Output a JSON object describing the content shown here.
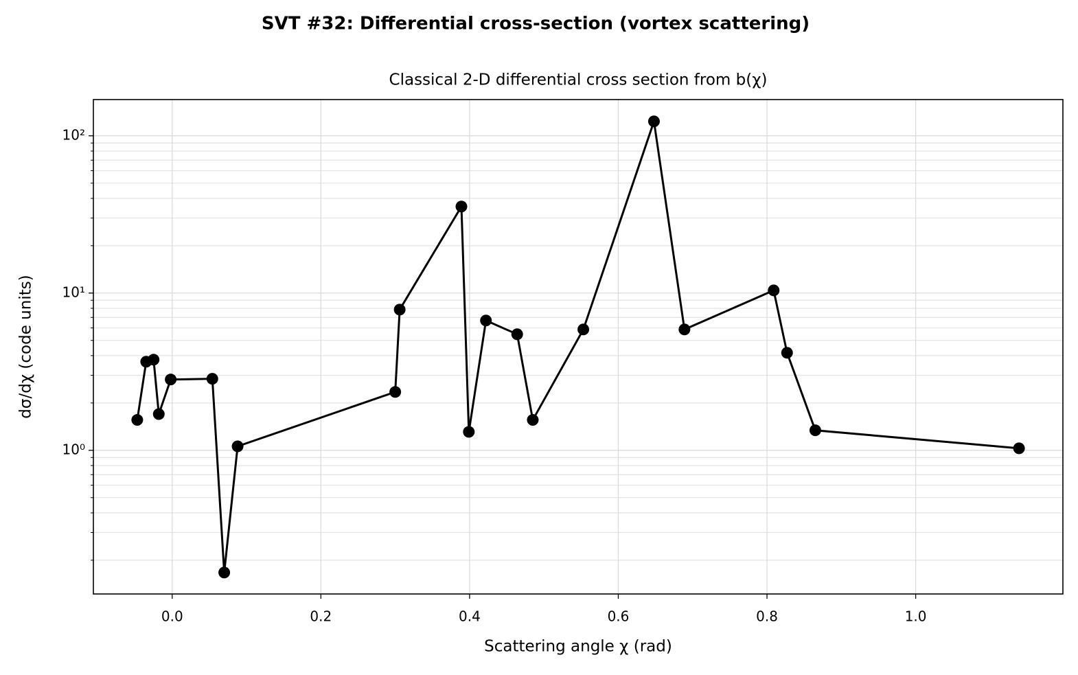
{
  "chart_data": {
    "type": "line",
    "title": "SVT #32: Differential cross-section (vortex scattering)",
    "subtitle": "Classical 2-D differential cross section from b(χ)",
    "xlabel": "Scattering angle χ  (rad)",
    "ylabel": "dσ/dχ  (code units)",
    "x": [
      -0.047,
      -0.035,
      -0.025,
      -0.018,
      -0.002,
      0.054,
      0.07,
      0.088,
      0.3,
      0.306,
      0.389,
      0.399,
      0.422,
      0.464,
      0.485,
      0.553,
      0.648,
      0.689,
      0.809,
      0.827,
      0.865,
      1.139
    ],
    "values": [
      1.56,
      3.66,
      3.77,
      1.7,
      2.82,
      2.85,
      0.167,
      1.06,
      2.35,
      7.85,
      35.5,
      1.31,
      6.69,
      5.47,
      1.56,
      5.87,
      123.5,
      5.87,
      10.4,
      4.17,
      1.34,
      1.03
    ],
    "color": "#000000",
    "xlim": [
      -0.106,
      1.198
    ],
    "ylim": [
      0.122,
      170
    ],
    "xticks": [
      {
        "value": 0,
        "label": "0.0"
      },
      0.2,
      0.4,
      0.6,
      0.8,
      {
        "value": 1,
        "label": "1.0"
      }
    ],
    "yticks": [
      {
        "value": 1,
        "label": "10⁰"
      },
      {
        "value": 10,
        "label": "10¹"
      },
      {
        "value": 100,
        "label": "10²"
      }
    ],
    "yminorticks": [
      0.2,
      0.3,
      0.4,
      0.5,
      0.6,
      0.7,
      0.8,
      0.9,
      2,
      3,
      4,
      5,
      6,
      7,
      8,
      9,
      20,
      30,
      40,
      50,
      60,
      70,
      80,
      90
    ],
    "ylog": true,
    "grid": true,
    "minor_grid": true
  }
}
